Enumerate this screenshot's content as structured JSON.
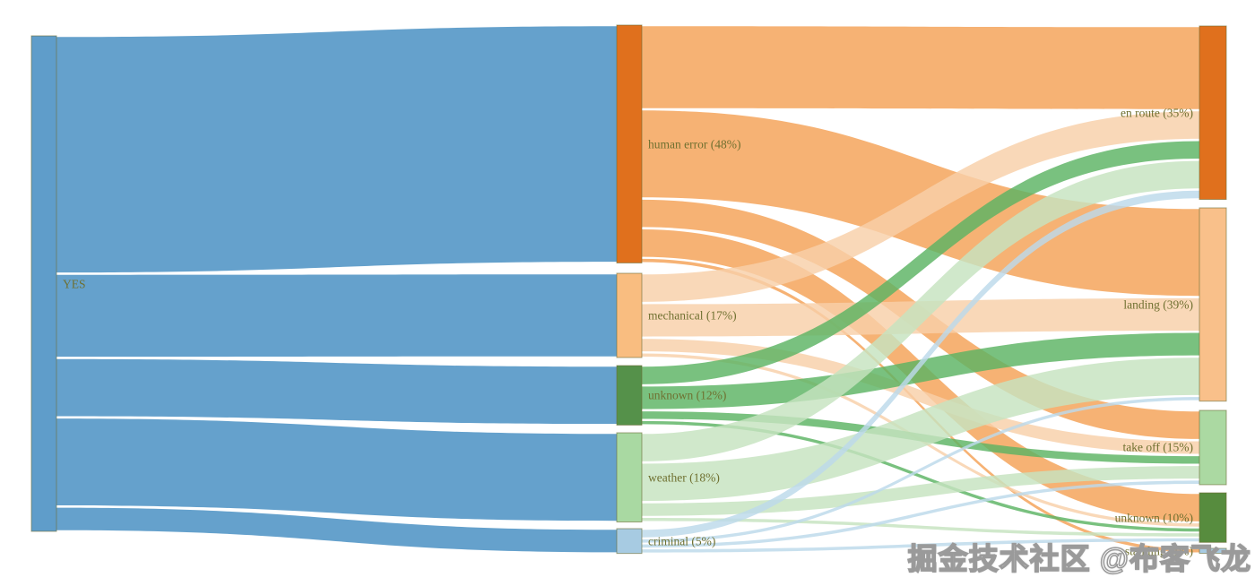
{
  "watermark": {
    "text": "掘金技术社区 @布客飞龙"
  },
  "label_color": "#6f7030",
  "chart_data": {
    "type": "sankey",
    "title": "",
    "unit": "percent",
    "legend_position": "none",
    "grid": false,
    "nodes": [
      {
        "id": "YES",
        "label": "YES",
        "col": 0,
        "pct": 100,
        "color": "#5f9dca",
        "flow": "#5f9dca"
      },
      {
        "id": "human_error",
        "label": "human error (48%)",
        "col": 1,
        "pct": 48,
        "color": "#e0701d",
        "flow": "#f4a156"
      },
      {
        "id": "mechanical",
        "label": "mechanical (17%)",
        "col": 1,
        "pct": 17,
        "color": "#f9bd80",
        "flow": "#f8d0a8"
      },
      {
        "id": "unknown_cause",
        "label": "unknown (12%)",
        "col": 1,
        "pct": 12,
        "color": "#55914a",
        "flow": "#5cb363"
      },
      {
        "id": "weather",
        "label": "weather (18%)",
        "col": 1,
        "pct": 18,
        "color": "#a9d9a2",
        "flow": "#c6e3c0"
      },
      {
        "id": "criminal",
        "label": "criminal (5%)",
        "col": 1,
        "pct": 5,
        "color": "#a7cbe2",
        "flow": "#bcd9ea"
      },
      {
        "id": "en_route",
        "label": "en route (35%)",
        "col": 2,
        "pct": 35,
        "color": "#e0701d",
        "flow": "#e0701d"
      },
      {
        "id": "landing",
        "label": "landing (39%)",
        "col": 2,
        "pct": 39,
        "color": "#f9c08a",
        "flow": "#f9c08a"
      },
      {
        "id": "take_off",
        "label": "take off (15%)",
        "col": 2,
        "pct": 15,
        "color": "#abd9a2",
        "flow": "#abd9a2"
      },
      {
        "id": "unknown_phase",
        "label": "unknown (10%)",
        "col": 2,
        "pct": 10,
        "color": "#578c3e",
        "flow": "#578c3e"
      },
      {
        "id": "standing",
        "label": "standing (1%)",
        "col": 2,
        "pct": 1,
        "color": "#a7cbe2",
        "flow": "#a7cbe2"
      }
    ],
    "links": [
      {
        "source": "YES",
        "target": "human_error",
        "value": 48
      },
      {
        "source": "YES",
        "target": "mechanical",
        "value": 17
      },
      {
        "source": "YES",
        "target": "unknown_cause",
        "value": 12
      },
      {
        "source": "YES",
        "target": "weather",
        "value": 18
      },
      {
        "source": "YES",
        "target": "criminal",
        "value": 5
      },
      {
        "source": "human_error",
        "target": "en_route",
        "value": 17
      },
      {
        "source": "human_error",
        "target": "landing",
        "value": 18
      },
      {
        "source": "human_error",
        "target": "take_off",
        "value": 6
      },
      {
        "source": "human_error",
        "target": "unknown_phase",
        "value": 6
      },
      {
        "source": "human_error",
        "target": "standing",
        "value": 1
      },
      {
        "source": "mechanical",
        "target": "en_route",
        "value": 6
      },
      {
        "source": "mechanical",
        "target": "landing",
        "value": 7
      },
      {
        "source": "mechanical",
        "target": "take_off",
        "value": 3
      },
      {
        "source": "mechanical",
        "target": "unknown_phase",
        "value": 1
      },
      {
        "source": "unknown_cause",
        "target": "en_route",
        "value": 4
      },
      {
        "source": "unknown_cause",
        "target": "landing",
        "value": 5
      },
      {
        "source": "unknown_cause",
        "target": "take_off",
        "value": 2
      },
      {
        "source": "unknown_cause",
        "target": "unknown_phase",
        "value": 1
      },
      {
        "source": "weather",
        "target": "en_route",
        "value": 6
      },
      {
        "source": "weather",
        "target": "landing",
        "value": 8
      },
      {
        "source": "weather",
        "target": "take_off",
        "value": 3
      },
      {
        "source": "weather",
        "target": "unknown_phase",
        "value": 1
      },
      {
        "source": "criminal",
        "target": "en_route",
        "value": 2
      },
      {
        "source": "criminal",
        "target": "landing",
        "value": 1
      },
      {
        "source": "criminal",
        "target": "take_off",
        "value": 1
      },
      {
        "source": "criminal",
        "target": "unknown_phase",
        "value": 1
      }
    ]
  }
}
